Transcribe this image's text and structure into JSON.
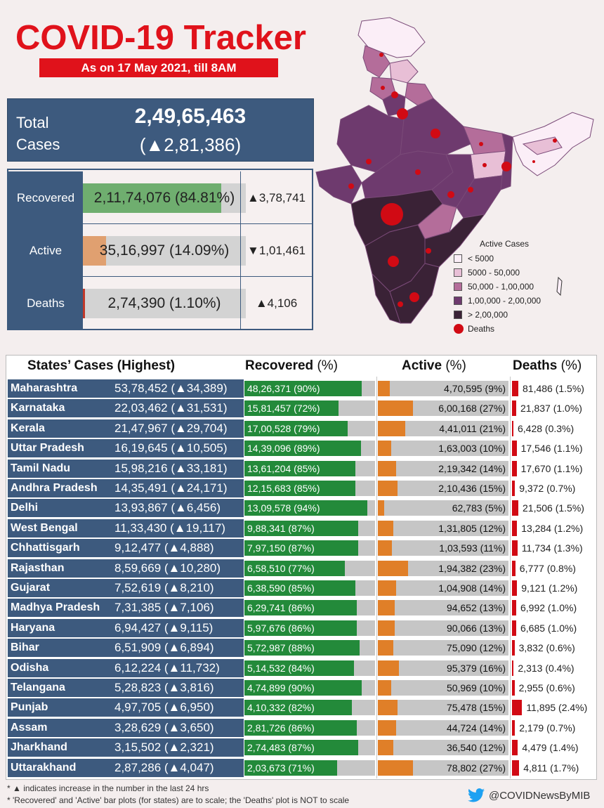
{
  "header": {
    "title": "COVID-19 Tracker",
    "subtitle": "As on 17 May 2021, till 8AM"
  },
  "total": {
    "label_line1": "Total",
    "label_line2": "Cases",
    "value": "2,49,65,463",
    "delta": "(▲2,81,386)"
  },
  "summary": [
    {
      "label": "Recovered",
      "text": "2,11,74,076 (84.81%)",
      "pct": 84.81,
      "delta": "▲3,78,741",
      "color": "#6fae6f"
    },
    {
      "label": "Active",
      "text": "35,16,997 (14.09%)",
      "pct": 14.09,
      "delta": "▼1,01,461",
      "color": "#e0a070"
    },
    {
      "label": "Deaths",
      "text": "2,74,390 (1.10%)",
      "pct": 1.1,
      "delta": "▲4,106",
      "color": "#c0392b"
    }
  ],
  "legend": {
    "title": "Active Cases",
    "items": [
      {
        "label": "< 5000",
        "color": "#fbeef7"
      },
      {
        "label": "5000 - 50,000",
        "color": "#e8bfd6"
      },
      {
        "label": "50,000 - 1,00,000",
        "color": "#b46d9a"
      },
      {
        "label": "1,00,000 - 2,00,000",
        "color": "#6e3a6e"
      },
      {
        "label": "> 2,00,000",
        "color": "#3a2236"
      }
    ],
    "deaths_label": "Deaths"
  },
  "table": {
    "headers": {
      "states": "States’ Cases (Highest)",
      "recovered": "Recovered",
      "active": "Active",
      "deaths": "Deaths",
      "pct": "(%)"
    },
    "rows": [
      {
        "state": "Maharashtra",
        "cases": "53,78,452 (▲34,389)",
        "rec": "48,26,371 (90%)",
        "rec_pct": 90,
        "act": "4,70,595 (9%)",
        "act_pct": 9,
        "death": "81,486 (1.5%)",
        "death_pct": 1.5
      },
      {
        "state": "Karnataka",
        "cases": "22,03,462 (▲31,531)",
        "rec": "15,81,457 (72%)",
        "rec_pct": 72,
        "act": "6,00,168 (27%)",
        "act_pct": 27,
        "death": "21,837 (1.0%)",
        "death_pct": 1.0
      },
      {
        "state": "Kerala",
        "cases": "21,47,967 (▲29,704)",
        "rec": "17,00,528 (79%)",
        "rec_pct": 79,
        "act": "4,41,011 (21%)",
        "act_pct": 21,
        "death": "6,428 (0.3%)",
        "death_pct": 0.3
      },
      {
        "state": "Uttar Pradesh",
        "cases": "16,19,645 (▲10,505)",
        "rec": "14,39,096 (89%)",
        "rec_pct": 89,
        "act": "1,63,003 (10%)",
        "act_pct": 10,
        "death": "17,546 (1.1%)",
        "death_pct": 1.1
      },
      {
        "state": "Tamil Nadu",
        "cases": "15,98,216 (▲33,181)",
        "rec": "13,61,204 (85%)",
        "rec_pct": 85,
        "act": "2,19,342 (14%)",
        "act_pct": 14,
        "death": "17,670 (1.1%)",
        "death_pct": 1.1
      },
      {
        "state": "Andhra Pradesh",
        "cases": "14,35,491 (▲24,171)",
        "rec": "12,15,683 (85%)",
        "rec_pct": 85,
        "act": "2,10,436 (15%)",
        "act_pct": 15,
        "death": "9,372 (0.7%)",
        "death_pct": 0.7
      },
      {
        "state": "Delhi",
        "cases": "13,93,867 (▲6,456)",
        "rec": "13,09,578 (94%)",
        "rec_pct": 94,
        "act": "62,783 (5%)",
        "act_pct": 5,
        "death": "21,506 (1.5%)",
        "death_pct": 1.5
      },
      {
        "state": "West Bengal",
        "cases": "11,33,430 (▲19,117)",
        "rec": "9,88,341 (87%)",
        "rec_pct": 87,
        "act": "1,31,805 (12%)",
        "act_pct": 12,
        "death": "13,284 (1.2%)",
        "death_pct": 1.2
      },
      {
        "state": "Chhattisgarh",
        "cases": "9,12,477 (▲4,888)",
        "rec": "7,97,150 (87%)",
        "rec_pct": 87,
        "act": "1,03,593 (11%)",
        "act_pct": 11,
        "death": "11,734 (1.3%)",
        "death_pct": 1.3
      },
      {
        "state": "Rajasthan",
        "cases": "8,59,669 (▲10,280)",
        "rec": "6,58,510 (77%)",
        "rec_pct": 77,
        "act": "1,94,382 (23%)",
        "act_pct": 23,
        "death": "6,777 (0.8%)",
        "death_pct": 0.8
      },
      {
        "state": "Gujarat",
        "cases": "7,52,619 (▲8,210)",
        "rec": "6,38,590 (85%)",
        "rec_pct": 85,
        "act": "1,04,908 (14%)",
        "act_pct": 14,
        "death": "9,121 (1.2%)",
        "death_pct": 1.2
      },
      {
        "state": "Madhya Pradesh",
        "cases": "7,31,385 (▲7,106)",
        "rec": "6,29,741 (86%)",
        "rec_pct": 86,
        "act": "94,652 (13%)",
        "act_pct": 13,
        "death": "6,992 (1.0%)",
        "death_pct": 1.0
      },
      {
        "state": "Haryana",
        "cases": "6,94,427 (▲9,115)",
        "rec": "5,97,676 (86%)",
        "rec_pct": 86,
        "act": "90,066 (13%)",
        "act_pct": 13,
        "death": "6,685 (1.0%)",
        "death_pct": 1.0
      },
      {
        "state": "Bihar",
        "cases": "6,51,909 (▲6,894)",
        "rec": "5,72,987 (88%)",
        "rec_pct": 88,
        "act": "75,090 (12%)",
        "act_pct": 12,
        "death": "3,832 (0.6%)",
        "death_pct": 0.6
      },
      {
        "state": "Odisha",
        "cases": "6,12,224 (▲11,732)",
        "rec": "5,14,532 (84%)",
        "rec_pct": 84,
        "act": "95,379 (16%)",
        "act_pct": 16,
        "death": "2,313 (0.4%)",
        "death_pct": 0.4
      },
      {
        "state": "Telangana",
        "cases": "5,28,823 (▲3,816)",
        "rec": "4,74,899 (90%)",
        "rec_pct": 90,
        "act": "50,969 (10%)",
        "act_pct": 10,
        "death": "2,955 (0.6%)",
        "death_pct": 0.6
      },
      {
        "state": "Punjab",
        "cases": "4,97,705 (▲6,950)",
        "rec": "4,10,332 (82%)",
        "rec_pct": 82,
        "act": "75,478 (15%)",
        "act_pct": 15,
        "death": "11,895 (2.4%)",
        "death_pct": 2.4
      },
      {
        "state": "Assam",
        "cases": "3,28,629 (▲3,650)",
        "rec": "2,81,726 (86%)",
        "rec_pct": 86,
        "act": "44,724 (14%)",
        "act_pct": 14,
        "death": "2,179 (0.7%)",
        "death_pct": 0.7
      },
      {
        "state": "Jharkhand",
        "cases": "3,15,502 (▲2,321)",
        "rec": "2,74,483 (87%)",
        "rec_pct": 87,
        "act": "36,540 (12%)",
        "act_pct": 12,
        "death": "4,479 (1.4%)",
        "death_pct": 1.4
      },
      {
        "state": "Uttarakhand",
        "cases": "2,87,286 (▲4,047)",
        "rec": "2,03,673 (71%)",
        "rec_pct": 71,
        "act": "78,802 (27%)",
        "act_pct": 27,
        "death": "4,811 (1.7%)",
        "death_pct": 1.7
      }
    ]
  },
  "footer": {
    "note1": "* ▲ indicates increase in the number in the last 24 hrs",
    "note2": "* 'Recovered' and 'Active' bar plots (for states) are to scale; the 'Deaths' plot is NOT to scale",
    "handle": "@COVIDNewsByMIB"
  },
  "colors": {
    "navy": "#3d5a7e",
    "red": "#e0121b",
    "green": "#238a3a",
    "orange": "#e07f28"
  }
}
